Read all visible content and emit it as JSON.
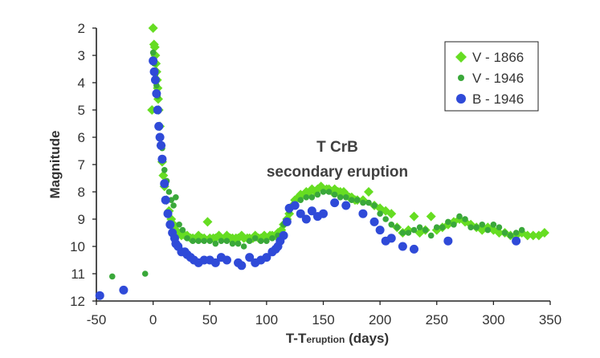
{
  "chart_data": {
    "type": "scatter",
    "title": "",
    "annotation_lines": [
      "T CrB",
      "secondary eruption"
    ],
    "xlabel_main": "T-T",
    "xlabel_sub": "eruption",
    "xlabel_units": " (days)",
    "ylabel": "Magnitude",
    "xlim": [
      -50,
      350
    ],
    "ylim": [
      2,
      12
    ],
    "y_inverted": true,
    "grid": false,
    "legend_position": "top-right",
    "x_ticks": [
      "-50",
      "0",
      "50",
      "100",
      "150",
      "200",
      "250",
      "300",
      "350"
    ],
    "y_ticks": [
      "2",
      "3",
      "4",
      "5",
      "6",
      "7",
      "8",
      "9",
      "10",
      "11",
      "12"
    ],
    "series": [
      {
        "name": "V - 1866",
        "marker": "diamond",
        "color": "#66dd22",
        "x": [
          0,
          0.8,
          1.5,
          2,
          2.5,
          3,
          3.5,
          4,
          4.5,
          5,
          6,
          7,
          8,
          9,
          10,
          12,
          14,
          16,
          18,
          20,
          22,
          25,
          28,
          30,
          33,
          35,
          38,
          40,
          43,
          45,
          48,
          50,
          53,
          55,
          58,
          60,
          63,
          65,
          68,
          70,
          73,
          75,
          78,
          80,
          83,
          85,
          88,
          90,
          93,
          95,
          98,
          100,
          103,
          105,
          108,
          110,
          113,
          115,
          118,
          120,
          123,
          125,
          128,
          130,
          133,
          135,
          138,
          140,
          143,
          145,
          148,
          150,
          153,
          155,
          158,
          160,
          163,
          165,
          168,
          170,
          173,
          175,
          178,
          180,
          185,
          190,
          195,
          200,
          205,
          210,
          215,
          220,
          225,
          230,
          235,
          240,
          245,
          250,
          255,
          260,
          265,
          270,
          275,
          280,
          285,
          290,
          295,
          300,
          305,
          310,
          315,
          320,
          325,
          330,
          335,
          340,
          345,
          -1
        ],
        "y": [
          2.0,
          2.6,
          2.7,
          3.0,
          3.3,
          3.6,
          3.9,
          4.2,
          4.6,
          5.0,
          5.6,
          6.3,
          6.9,
          7.4,
          7.8,
          8.3,
          8.7,
          9.0,
          9.2,
          9.4,
          9.5,
          9.6,
          9.6,
          9.6,
          9.7,
          9.7,
          9.7,
          9.6,
          9.7,
          9.7,
          9.1,
          9.7,
          9.7,
          9.7,
          9.6,
          9.7,
          9.7,
          9.6,
          9.7,
          9.7,
          9.7,
          9.7,
          9.6,
          9.7,
          9.7,
          9.7,
          9.7,
          9.6,
          9.7,
          9.7,
          9.6,
          9.7,
          9.6,
          9.6,
          9.6,
          9.5,
          9.4,
          9.2,
          9.0,
          8.8,
          8.5,
          8.3,
          8.2,
          8.1,
          8.1,
          8.0,
          8.0,
          7.9,
          8.0,
          7.9,
          7.8,
          7.9,
          7.9,
          7.9,
          8.0,
          7.9,
          8.0,
          8.0,
          8.0,
          8.1,
          8.2,
          8.2,
          8.3,
          8.3,
          8.3,
          8.0,
          8.5,
          8.6,
          8.7,
          8.8,
          9.3,
          9.5,
          9.4,
          8.9,
          9.5,
          9.4,
          8.9,
          9.4,
          9.3,
          9.2,
          9.1,
          9.0,
          9.1,
          9.2,
          9.3,
          9.4,
          9.3,
          9.4,
          9.5,
          9.5,
          9.6,
          9.6,
          9.5,
          9.6,
          9.6,
          9.6,
          9.5,
          5.0
        ]
      },
      {
        "name": "V - 1946",
        "marker": "circle-small",
        "color": "#3aa83a",
        "x": [
          -36,
          -7,
          0,
          1,
          2,
          3,
          4,
          5,
          6,
          8,
          10,
          12,
          14,
          16,
          18,
          20,
          23,
          26,
          30,
          35,
          40,
          45,
          50,
          55,
          60,
          65,
          70,
          75,
          80,
          85,
          90,
          95,
          100,
          105,
          110,
          115,
          120,
          125,
          130,
          135,
          140,
          145,
          150,
          155,
          160,
          165,
          170,
          175,
          180,
          185,
          190,
          195,
          200,
          205,
          210,
          215,
          220,
          225,
          230,
          235,
          240,
          245,
          250,
          255,
          260,
          265,
          270,
          275,
          280,
          285,
          290,
          295,
          300,
          305,
          310,
          315,
          320,
          325
        ],
        "y": [
          11.1,
          11.0,
          2.9,
          3.3,
          3.7,
          4.1,
          4.5,
          5.0,
          5.6,
          6.4,
          7.2,
          7.6,
          8.0,
          8.3,
          8.5,
          8.2,
          9.2,
          9.4,
          9.7,
          9.8,
          9.8,
          9.8,
          9.8,
          9.9,
          9.8,
          9.8,
          9.9,
          9.9,
          10.0,
          9.8,
          9.7,
          9.8,
          9.8,
          9.7,
          9.6,
          9.2,
          8.7,
          8.5,
          8.3,
          8.2,
          8.2,
          8.1,
          8.0,
          8.0,
          8.1,
          8.2,
          8.2,
          8.3,
          8.3,
          8.4,
          8.4,
          8.5,
          8.8,
          9.0,
          9.2,
          9.3,
          9.5,
          9.5,
          9.4,
          9.3,
          9.4,
          9.6,
          9.3,
          9.3,
          9.1,
          9.2,
          8.9,
          9.0,
          9.3,
          9.3,
          9.2,
          9.4,
          9.2,
          9.3,
          9.5,
          9.6,
          9.5,
          9.4
        ]
      },
      {
        "name": "B - 1946",
        "marker": "circle-large",
        "color": "#2f4ad8",
        "x": [
          -47,
          -26,
          0,
          1,
          2,
          3,
          4,
          5,
          6,
          7,
          8,
          10,
          11,
          13,
          15,
          17,
          19,
          20,
          22,
          25,
          28,
          30,
          33,
          36,
          40,
          45,
          50,
          55,
          60,
          65,
          75,
          78,
          85,
          90,
          95,
          100,
          105,
          108,
          110,
          112,
          115,
          118,
          120,
          125,
          130,
          135,
          140,
          145,
          150,
          160,
          170,
          185,
          195,
          200,
          205,
          210,
          220,
          230,
          260,
          320
        ],
        "y": [
          11.8,
          11.6,
          3.2,
          3.6,
          3.9,
          4.4,
          5.0,
          5.6,
          6.0,
          6.3,
          6.8,
          7.7,
          8.3,
          8.8,
          9.2,
          9.5,
          9.7,
          9.9,
          10.0,
          10.2,
          10.2,
          10.3,
          10.4,
          10.5,
          10.6,
          10.5,
          10.5,
          10.6,
          10.4,
          10.5,
          10.6,
          10.7,
          10.4,
          10.6,
          10.5,
          10.4,
          10.2,
          10.1,
          10.0,
          9.8,
          9.6,
          9.1,
          8.6,
          8.5,
          8.8,
          9.0,
          8.7,
          8.9,
          8.8,
          8.4,
          8.5,
          8.8,
          9.1,
          9.4,
          9.8,
          9.7,
          10.0,
          10.1,
          9.8,
          9.8
        ]
      }
    ]
  }
}
